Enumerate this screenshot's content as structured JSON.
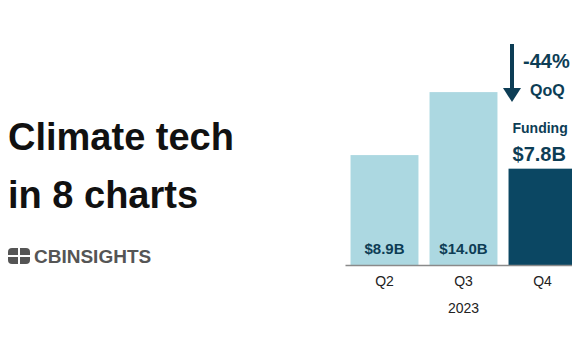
{
  "header": {
    "title_lines": [
      "Climate tech",
      "in 8 charts"
    ],
    "brand": "CBINSIGHTS"
  },
  "chart_data": {
    "type": "bar",
    "categories": [
      "Q2",
      "Q3",
      "Q4"
    ],
    "values": [
      8.9,
      14.0,
      7.8
    ],
    "value_labels": [
      "$8.9B",
      "$14.0B",
      "$7.8B"
    ],
    "colors": [
      "#acd8e1",
      "#acd8e1",
      "#0b4763"
    ],
    "xlabel": "2023",
    "ylim": [
      0,
      20
    ],
    "tick_labels": "x",
    "data_labels": true,
    "grid": false,
    "annotation": {
      "change": "-44%",
      "period": "QoQ",
      "label": "Funding"
    }
  }
}
